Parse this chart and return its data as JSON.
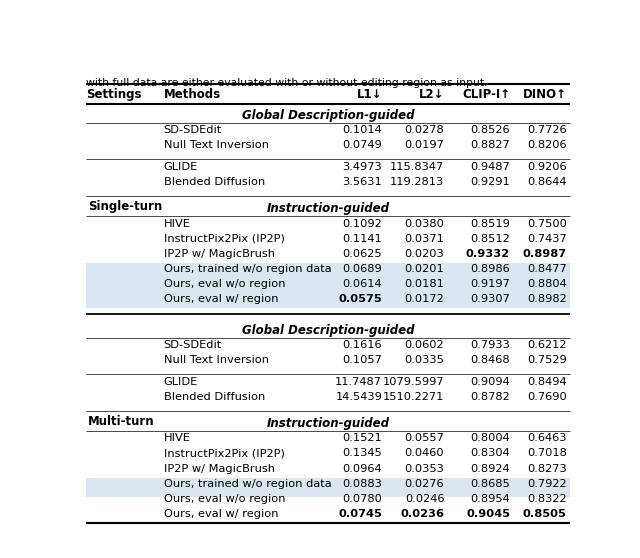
{
  "caption_text": "with full data are either evaluated with or without editing region as input.",
  "header": [
    "Settings",
    "Methods",
    "L1↓",
    "L2↓",
    "CLIP-I↑",
    "DINO↑"
  ],
  "sections": [
    {
      "setting": "Single-turn",
      "groups": [
        {
          "section_header": "Global Description-guided",
          "rows": [
            {
              "method": "SD-SDEdit",
              "l1": "0.1014",
              "l2": "0.0278",
              "clip": "0.8526",
              "dino": "0.7726",
              "bold_cols": [],
              "highlight": false
            },
            {
              "method": "Null Text Inversion",
              "l1": "0.0749",
              "l2": "0.0197",
              "clip": "0.8827",
              "dino": "0.8206",
              "bold_cols": [],
              "highlight": false
            }
          ],
          "group_separator_after": true
        },
        {
          "section_header": null,
          "rows": [
            {
              "method": "GLIDE",
              "l1": "3.4973",
              "l2": "115.8347",
              "clip": "0.9487",
              "dino": "0.9206",
              "bold_cols": [],
              "highlight": false
            },
            {
              "method": "Blended Diffusion",
              "l1": "3.5631",
              "l2": "119.2813",
              "clip": "0.9291",
              "dino": "0.8644",
              "bold_cols": [],
              "highlight": false
            }
          ],
          "group_separator_after": true
        },
        {
          "section_header": "Instruction-guided",
          "rows": [
            {
              "method": "HIVE",
              "l1": "0.1092",
              "l2": "0.0380",
              "clip": "0.8519",
              "dino": "0.7500",
              "bold_cols": [],
              "highlight": false
            },
            {
              "method": "InstructPix2Pix (IP2P)",
              "l1": "0.1141",
              "l2": "0.0371",
              "clip": "0.8512",
              "dino": "0.7437",
              "bold_cols": [],
              "highlight": false
            },
            {
              "method": "IP2P w/ MagicBrush",
              "l1": "0.0625",
              "l2": "0.0203",
              "clip": "0.9332",
              "dino": "0.8987",
              "bold_cols": [
                3,
                4
              ],
              "highlight": false
            },
            {
              "method": "Ours, trained w/o region data",
              "l1": "0.0689",
              "l2": "0.0201",
              "clip": "0.8986",
              "dino": "0.8477",
              "bold_cols": [],
              "highlight": true
            },
            {
              "method": "Ours, eval w/o region",
              "l1": "0.0614",
              "l2": "0.0181",
              "clip": "0.9197",
              "dino": "0.8804",
              "bold_cols": [],
              "highlight": true
            },
            {
              "method": "Ours, eval w/ region",
              "l1": "0.0575",
              "l2": "0.0172",
              "clip": "0.9307",
              "dino": "0.8982",
              "bold_cols": [
                1
              ],
              "highlight": true
            }
          ],
          "group_separator_after": false
        }
      ]
    },
    {
      "setting": "Multi-turn",
      "groups": [
        {
          "section_header": "Global Description-guided",
          "rows": [
            {
              "method": "SD-SDEdit",
              "l1": "0.1616",
              "l2": "0.0602",
              "clip": "0.7933",
              "dino": "0.6212",
              "bold_cols": [],
              "highlight": false
            },
            {
              "method": "Null Text Inversion",
              "l1": "0.1057",
              "l2": "0.0335",
              "clip": "0.8468",
              "dino": "0.7529",
              "bold_cols": [],
              "highlight": false
            }
          ],
          "group_separator_after": true
        },
        {
          "section_header": null,
          "rows": [
            {
              "method": "GLIDE",
              "l1": "11.7487",
              "l2": "1079.5997",
              "clip": "0.9094",
              "dino": "0.8494",
              "bold_cols": [],
              "highlight": false
            },
            {
              "method": "Blended Diffusion",
              "l1": "14.5439",
              "l2": "1510.2271",
              "clip": "0.8782",
              "dino": "0.7690",
              "bold_cols": [],
              "highlight": false
            }
          ],
          "group_separator_after": true
        },
        {
          "section_header": "Instruction-guided",
          "rows": [
            {
              "method": "HIVE",
              "l1": "0.1521",
              "l2": "0.0557",
              "clip": "0.8004",
              "dino": "0.6463",
              "bold_cols": [],
              "highlight": false
            },
            {
              "method": "InstructPix2Pix (IP2P)",
              "l1": "0.1345",
              "l2": "0.0460",
              "clip": "0.8304",
              "dino": "0.7018",
              "bold_cols": [],
              "highlight": false
            },
            {
              "method": "IP2P w/ MagicBrush",
              "l1": "0.0964",
              "l2": "0.0353",
              "clip": "0.8924",
              "dino": "0.8273",
              "bold_cols": [],
              "highlight": false
            },
            {
              "method": "Ours, trained w/o region data",
              "l1": "0.0883",
              "l2": "0.0276",
              "clip": "0.8685",
              "dino": "0.7922",
              "bold_cols": [],
              "highlight": true
            },
            {
              "method": "Ours, eval w/o region",
              "l1": "0.0780",
              "l2": "0.0246",
              "clip": "0.8954",
              "dino": "0.8322",
              "bold_cols": [],
              "highlight": true
            },
            {
              "method": "Ours, eval w/ region",
              "l1": "0.0745",
              "l2": "0.0236",
              "clip": "0.9045",
              "dino": "0.8505",
              "bold_cols": [
                1,
                2,
                3,
                4
              ],
              "highlight": true
            }
          ],
          "group_separator_after": false
        }
      ]
    }
  ],
  "highlight_color": "#dce6f1",
  "font_size": 8.5,
  "small_font_size": 8.2,
  "caption_font_size": 7.8
}
